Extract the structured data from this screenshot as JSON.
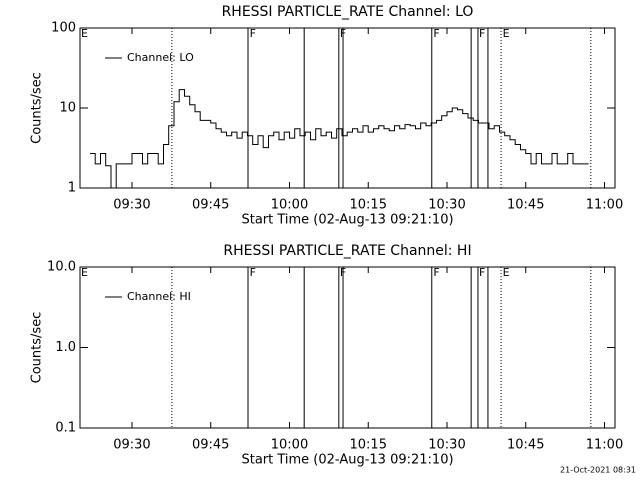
{
  "chart_data": [
    {
      "type": "line",
      "title": "RHESSI PARTICLE_RATE Channel: LO",
      "xlabel": "Start Time (02-Aug-13 09:21:10)",
      "ylabel": "Counts/sec",
      "x": [
        562,
        563,
        564,
        565,
        566,
        567,
        568,
        569,
        570,
        571,
        572,
        573,
        574,
        575,
        576,
        577,
        578,
        579,
        580,
        581,
        582,
        583,
        584,
        585,
        586,
        587,
        588,
        589,
        590,
        591,
        592,
        593,
        594,
        595,
        596,
        597,
        598,
        599,
        600,
        601,
        602,
        603,
        604,
        605,
        606,
        607,
        608,
        609,
        610,
        611,
        612,
        613,
        614,
        615,
        616,
        617,
        618,
        619,
        620,
        621,
        622,
        623,
        624,
        625,
        626,
        627,
        628,
        629,
        630,
        631,
        632,
        633,
        634,
        635,
        636,
        637,
        638,
        639,
        640,
        641,
        642,
        643,
        644,
        645,
        646,
        647,
        648,
        649,
        650,
        651,
        652,
        653,
        654,
        655,
        656,
        657
      ],
      "series": [
        {
          "name": "Channel: LO",
          "color": "#000000",
          "values": [
            2.7,
            2,
            2.7,
            1.9,
            1,
            2,
            2,
            2,
            2.7,
            2.7,
            2,
            2.7,
            2.7,
            2,
            3.5,
            6,
            12,
            17,
            14,
            11,
            9,
            7,
            7,
            6.5,
            5.5,
            5,
            4.5,
            5,
            4.2,
            5,
            4.5,
            3.5,
            4.5,
            3.2,
            4.5,
            5,
            4,
            5,
            4.2,
            5.5,
            4.5,
            5,
            4,
            5.5,
            4.5,
            5,
            4.2,
            5.5,
            4.5,
            5,
            5.5,
            5,
            6,
            5,
            5.5,
            6,
            5.5,
            5.2,
            6,
            5.5,
            6.2,
            6,
            5.5,
            6.5,
            6,
            6.5,
            7,
            8,
            9,
            10,
            9.5,
            8.5,
            7.5,
            7,
            6.5,
            6.5,
            5.5,
            6,
            5,
            4.5,
            4,
            3.5,
            3,
            2.7,
            2,
            2.7,
            2,
            2,
            2.7,
            2,
            2,
            2.7,
            2,
            2,
            2,
            2
          ]
        }
      ],
      "xlim": [
        560.1,
        662
      ],
      "xticks": [
        {
          "value": 570,
          "label": "09:30"
        },
        {
          "value": 585,
          "label": "09:45"
        },
        {
          "value": 600,
          "label": "10:00"
        },
        {
          "value": 615,
          "label": "10:15"
        },
        {
          "value": 630,
          "label": "10:30"
        },
        {
          "value": 645,
          "label": "10:45"
        },
        {
          "value": 660,
          "label": "11:00"
        }
      ],
      "ylim": [
        1,
        100
      ],
      "yticks": [
        1,
        10,
        100
      ],
      "log_y": true,
      "legend": "upper left",
      "vlines": [
        {
          "x": 577.6,
          "style": "dotted"
        },
        {
          "x": 592.1,
          "style": "solid"
        },
        {
          "x": 602.8,
          "style": "solid"
        },
        {
          "x": 609.4,
          "style": "solid"
        },
        {
          "x": 610.2,
          "style": "solid"
        },
        {
          "x": 627.1,
          "style": "solid"
        },
        {
          "x": 634.6,
          "style": "solid"
        },
        {
          "x": 635.9,
          "style": "solid"
        },
        {
          "x": 637.8,
          "style": "solid"
        },
        {
          "x": 640.3,
          "style": "dotted"
        },
        {
          "x": 657.4,
          "style": "dotted"
        }
      ],
      "flags": [
        {
          "text": "E",
          "x": 560.3
        },
        {
          "text": "F",
          "x": 592.4
        },
        {
          "text": "F",
          "x": 609.6
        },
        {
          "text": "F",
          "x": 627.4
        },
        {
          "text": "F",
          "x": 636.1
        },
        {
          "text": "E",
          "x": 640.6
        }
      ]
    },
    {
      "type": "line",
      "title": "RHESSI PARTICLE_RATE Channel: HI",
      "xlabel": "Start Time (02-Aug-13 09:21:10)",
      "ylabel": "Counts/sec",
      "x": [],
      "series": [
        {
          "name": "Channel: HI",
          "color": "#000000",
          "values": []
        }
      ],
      "xlim": [
        560.1,
        662
      ],
      "xticks": [
        {
          "value": 570,
          "label": "09:30"
        },
        {
          "value": 585,
          "label": "09:45"
        },
        {
          "value": 600,
          "label": "10:00"
        },
        {
          "value": 615,
          "label": "10:15"
        },
        {
          "value": 630,
          "label": "10:30"
        },
        {
          "value": 645,
          "label": "10:45"
        },
        {
          "value": 660,
          "label": "11:00"
        }
      ],
      "ylim": [
        0.1,
        10
      ],
      "yticks": [
        0.1,
        {
          "value": 1,
          "label": "1.0"
        },
        {
          "value": 10,
          "label": "10.0"
        }
      ],
      "log_y": true,
      "legend": "upper left",
      "vlines": [
        {
          "x": 577.6,
          "style": "dotted"
        },
        {
          "x": 592.1,
          "style": "solid"
        },
        {
          "x": 602.8,
          "style": "solid"
        },
        {
          "x": 609.4,
          "style": "solid"
        },
        {
          "x": 610.2,
          "style": "solid"
        },
        {
          "x": 627.1,
          "style": "solid"
        },
        {
          "x": 634.6,
          "style": "solid"
        },
        {
          "x": 635.9,
          "style": "solid"
        },
        {
          "x": 637.8,
          "style": "solid"
        },
        {
          "x": 640.3,
          "style": "dotted"
        },
        {
          "x": 657.4,
          "style": "dotted"
        }
      ],
      "flags": [
        {
          "text": "E",
          "x": 560.3
        },
        {
          "text": "F",
          "x": 592.4
        },
        {
          "text": "F",
          "x": 609.6
        },
        {
          "text": "F",
          "x": 627.4
        },
        {
          "text": "F",
          "x": 636.1
        },
        {
          "text": "E",
          "x": 640.6
        }
      ]
    }
  ],
  "footer": "21-Oct-2021 08:31"
}
